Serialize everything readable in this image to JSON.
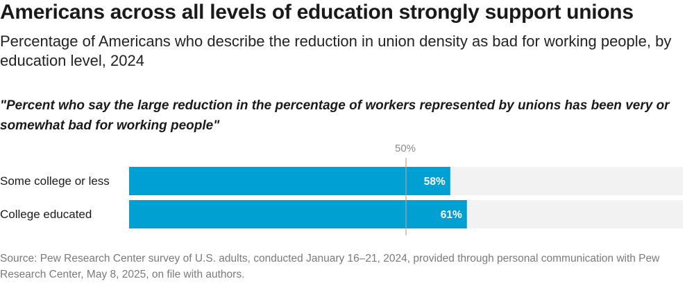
{
  "title": "Americans across all levels of education strongly support unions",
  "subtitle": "Percentage of Americans who describe the reduction in union density as bad for working people, by education level, 2024",
  "question": "\"Percent who say the large reduction in the percentage of workers represented by unions has been very or somewhat bad for working people\"",
  "source": "Source: Pew Research Center survey of U.S. adults, conducted January 16–21, 2024, provided through personal communication with Pew Research Center, May 8, 2025, on file with authors.",
  "colors": {
    "bar": "#00a0d2",
    "track": "#f2f2f2",
    "refline": "#a8a8a8"
  },
  "chart_data": {
    "type": "bar",
    "orientation": "horizontal",
    "categories": [
      "Some college or less",
      "College educated"
    ],
    "values": [
      58,
      61
    ],
    "value_labels": [
      "58%",
      "61%"
    ],
    "xlim": [
      0,
      100
    ],
    "reference_line": {
      "value": 50,
      "label": "50%"
    }
  }
}
